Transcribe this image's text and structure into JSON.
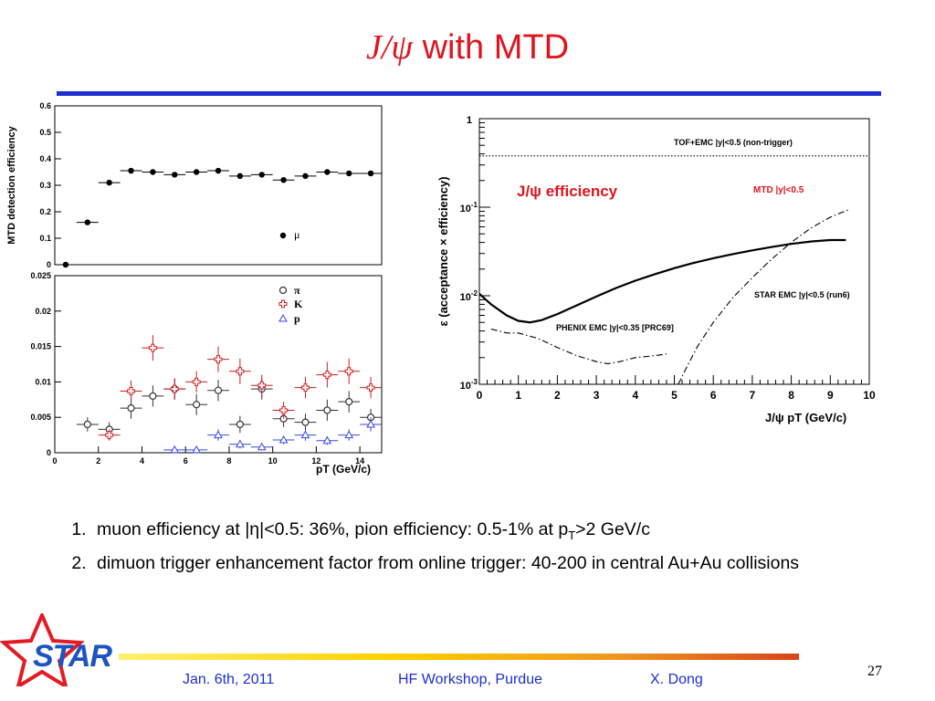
{
  "slide": {
    "title_sym": "J/ψ",
    "title_rest": " with MTD",
    "bullets": [
      {
        "text_a": "muon efficiency at |η|<0.5: 36%, pion efficiency: 0.5-1% at p",
        "sub": "T",
        "text_b": ">2 GeV/c"
      },
      {
        "text_a": "dimuon trigger enhancement factor from online trigger: 40-200 in central Au+Au collisions",
        "sub": "",
        "text_b": ""
      }
    ],
    "footer": {
      "date": "Jan. 6th, 2011",
      "event": "HF Workshop, Purdue",
      "author": "X. Dong",
      "page": "27",
      "logo": "STAR"
    }
  },
  "chart_data": [
    {
      "type": "scatter",
      "panel": "top-left",
      "ylabel": "MTD detection efficiency",
      "ylim": [
        0,
        0.6
      ],
      "xlim": [
        0,
        15
      ],
      "yticks": [
        "0",
        "0.1",
        "0.2",
        "0.3",
        "0.4",
        "0.5",
        "0.6"
      ],
      "series": [
        {
          "name": "μ",
          "color": "#000000",
          "marker": "filled-circle",
          "x": [
            0.5,
            1.5,
            2.5,
            3.5,
            4.5,
            5.5,
            6.5,
            7.5,
            8.5,
            9.5,
            10.5,
            11.5,
            12.5,
            13.5,
            14.5
          ],
          "y": [
            0.0,
            0.16,
            0.31,
            0.355,
            0.35,
            0.34,
            0.35,
            0.355,
            0.335,
            0.34,
            0.32,
            0.335,
            0.35,
            0.345,
            0.345
          ]
        }
      ]
    },
    {
      "type": "scatter",
      "panel": "bottom-left",
      "xlabel": "p_T (GeV/c)",
      "xlim": [
        0,
        15
      ],
      "ylim": [
        0,
        0.025
      ],
      "yticks": [
        "0",
        "0.005",
        "0.01",
        "0.015",
        "0.02",
        "0.025"
      ],
      "xticks": [
        "0",
        "2",
        "4",
        "6",
        "8",
        "10",
        "12",
        "14"
      ],
      "series": [
        {
          "name": "π",
          "color": "#333333",
          "marker": "open-circle",
          "x": [
            1.5,
            2.5,
            3.5,
            4.5,
            5.5,
            6.5,
            7.5,
            8.5,
            9.5,
            10.5,
            11.5,
            12.5,
            13.5,
            14.5
          ],
          "y": [
            0.004,
            0.0033,
            0.0063,
            0.008,
            0.009,
            0.0068,
            0.0088,
            0.004,
            0.009,
            0.0048,
            0.0043,
            0.006,
            0.0072,
            0.005
          ],
          "err": [
            0.001,
            0.001,
            0.0015,
            0.0015,
            0.0015,
            0.0015,
            0.0015,
            0.0012,
            0.0015,
            0.0012,
            0.0012,
            0.0015,
            0.0015,
            0.0012
          ]
        },
        {
          "name": "K",
          "color": "#d01e1e",
          "marker": "open-cross",
          "x": [
            2.5,
            3.5,
            4.5,
            5.5,
            6.5,
            7.5,
            8.5,
            9.5,
            10.5,
            11.5,
            12.5,
            13.5,
            14.5
          ],
          "y": [
            0.0025,
            0.0087,
            0.0148,
            0.009,
            0.01,
            0.0132,
            0.0115,
            0.0095,
            0.006,
            0.0092,
            0.011,
            0.0115,
            0.0092
          ],
          "err": [
            0.0008,
            0.0015,
            0.0018,
            0.0015,
            0.0015,
            0.0018,
            0.0018,
            0.0015,
            0.0012,
            0.0015,
            0.0018,
            0.0018,
            0.0015
          ]
        },
        {
          "name": "p",
          "color": "#3548e6",
          "marker": "open-triangle",
          "x": [
            5.5,
            6.5,
            7.5,
            8.5,
            9.5,
            10.5,
            11.5,
            12.5,
            13.5,
            14.5
          ],
          "y": [
            0.0004,
            0.0004,
            0.0025,
            0.0012,
            0.0008,
            0.0018,
            0.0025,
            0.0017,
            0.0025,
            0.004
          ],
          "err": [
            0.0003,
            0.0003,
            0.0008,
            0.0006,
            0.0005,
            0.0006,
            0.0008,
            0.0006,
            0.0008,
            0.001
          ]
        }
      ]
    },
    {
      "type": "line",
      "panel": "right",
      "xlabel": "J/ψ p_T (GeV/c)",
      "ylabel": "ε (acceptance × efficiency)",
      "xlim": [
        0,
        10
      ],
      "ylim": [
        0.001,
        1
      ],
      "log_y": true,
      "xticks": [
        "0",
        "1",
        "2",
        "3",
        "4",
        "5",
        "6",
        "7",
        "8",
        "9",
        "10"
      ],
      "yticks": [
        "10^-3",
        "10^-2",
        "10^-1",
        "1"
      ],
      "annotation_main": "J/ψ efficiency",
      "series": [
        {
          "name": "TOF+EMC |y|<0.5 (non-trigger)",
          "style": "dotted",
          "color": "#000000",
          "x": [
            0,
            10
          ],
          "y": [
            0.38,
            0.38
          ]
        },
        {
          "name": "MTD |y|<0.5",
          "style": "solid",
          "color": "#000000",
          "x": [
            0,
            0.3,
            0.7,
            1.0,
            1.3,
            1.6,
            2.0,
            2.5,
            3.0,
            3.5,
            4.0,
            4.5,
            5.0,
            5.5,
            6.0,
            6.5,
            7.0,
            7.5,
            8.0,
            8.5,
            9.0,
            9.4
          ],
          "y": [
            0.0105,
            0.008,
            0.006,
            0.0052,
            0.005,
            0.0053,
            0.0062,
            0.0078,
            0.0098,
            0.0122,
            0.0148,
            0.0175,
            0.0205,
            0.0235,
            0.0265,
            0.0295,
            0.0325,
            0.0355,
            0.0385,
            0.041,
            0.0425,
            0.0425
          ]
        },
        {
          "name": "STAR EMC |y|<0.5 (run6)",
          "style": "dashdot",
          "color": "#000000",
          "x": [
            5.1,
            5.3,
            5.6,
            6.0,
            6.5,
            7.0,
            7.5,
            8.0,
            8.5,
            9.0,
            9.5
          ],
          "y": [
            0.001,
            0.0015,
            0.0027,
            0.005,
            0.0095,
            0.016,
            0.026,
            0.04,
            0.058,
            0.077,
            0.095
          ]
        },
        {
          "name": "PHENIX EMC |y|<0.35 [PRC69]",
          "style": "dashdot",
          "color": "#000000",
          "x": [
            0.3,
            0.7,
            1.0,
            1.5,
            2.0,
            2.5,
            3.0,
            3.3,
            3.6,
            4.0,
            4.5,
            4.8
          ],
          "y": [
            0.0042,
            0.0038,
            0.0038,
            0.0033,
            0.0026,
            0.0021,
            0.0018,
            0.0017,
            0.0018,
            0.002,
            0.0021,
            0.0022
          ]
        }
      ]
    }
  ]
}
